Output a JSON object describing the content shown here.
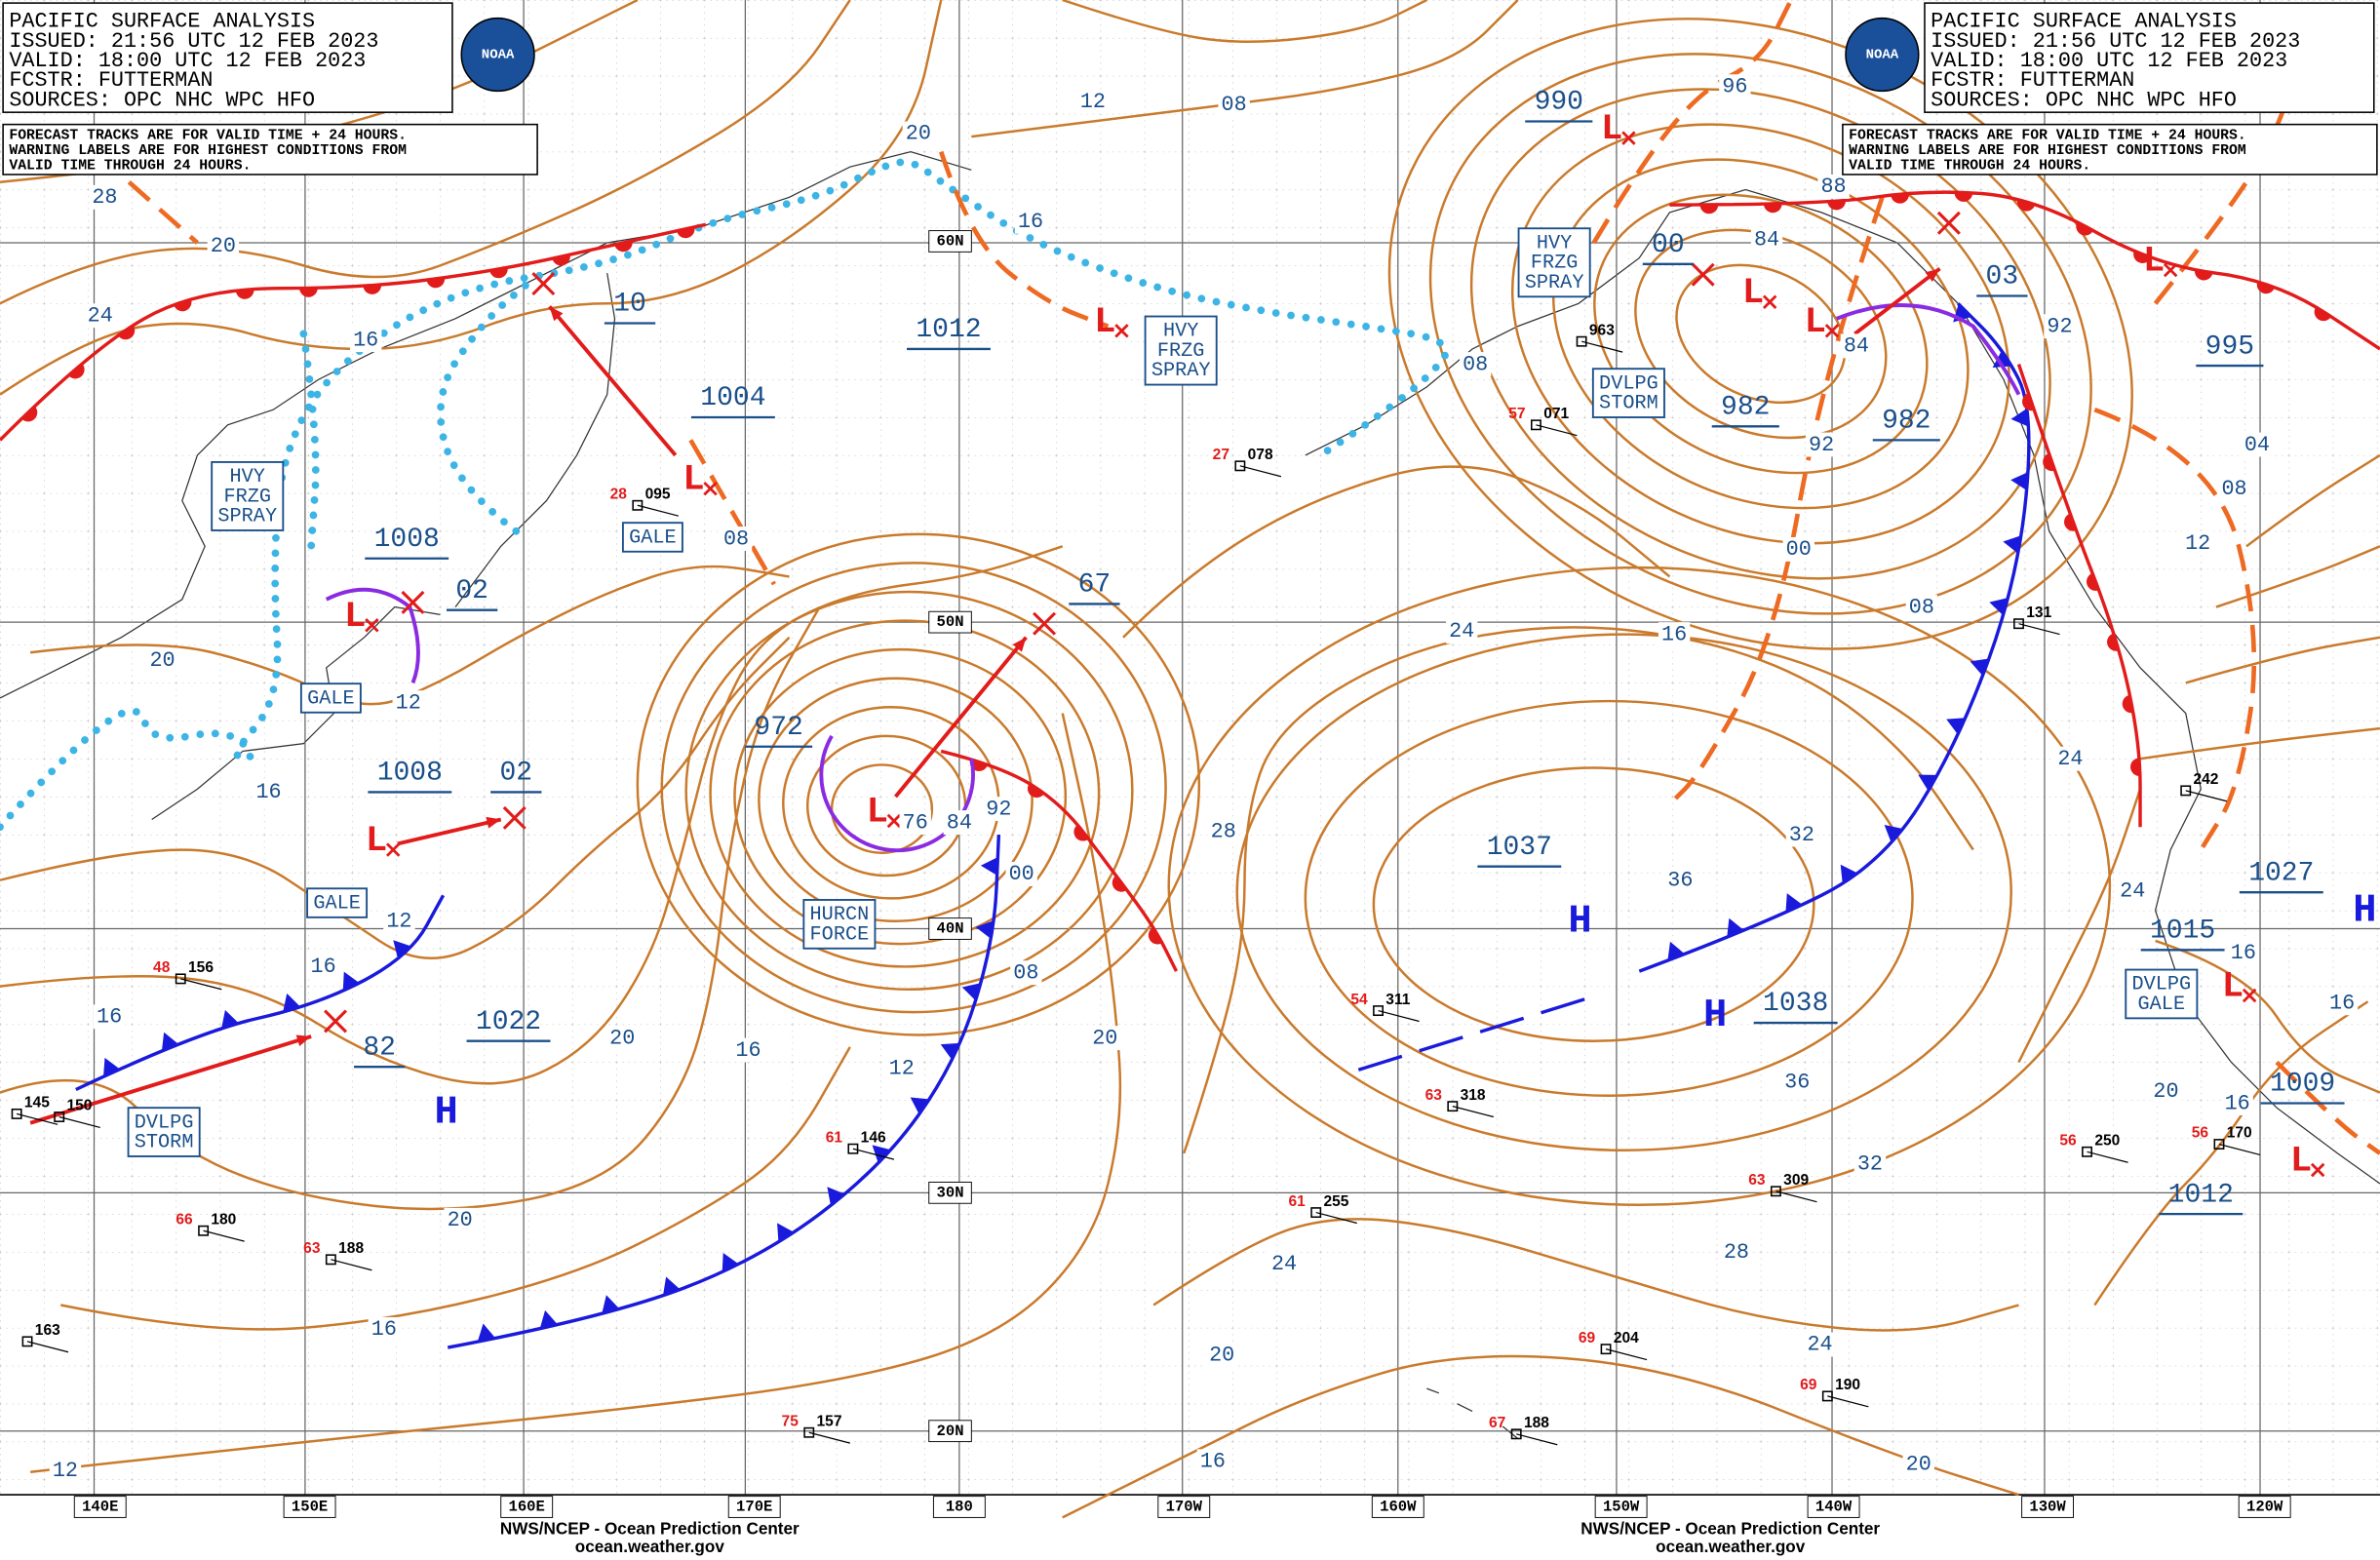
{
  "header": {
    "title": "PACIFIC SURFACE ANALYSIS",
    "issued": "ISSUED: 21:56 UTC 12 FEB 2023",
    "valid": "VALID:  18:00 UTC 12 FEB 2023",
    "forecaster": "FCSTR:  FUTTERMAN",
    "sources": "SOURCES: OPC NHC WPC HFO",
    "logo": "NOAA",
    "note": [
      "FORECAST TRACKS ARE FOR VALID TIME + 24 HOURS.",
      "WARNING LABELS ARE FOR HIGHEST CONDITIONS FROM",
      "VALID TIME THROUGH 24 HOURS."
    ]
  },
  "pressure_centers": [
    "990",
    "1012",
    "1004",
    "1008",
    "02",
    "1008",
    "02",
    "972",
    "67",
    "1022",
    "82",
    "00",
    "03",
    "982",
    "982",
    "995",
    "1037",
    "1038",
    "1027",
    "1015",
    "1009",
    "1012",
    "10"
  ],
  "isobar_labels": [
    "12",
    "08",
    "96",
    "20",
    "16",
    "28",
    "20",
    "24",
    "16",
    "08",
    "20",
    "12",
    "16",
    "12",
    "16",
    "16",
    "20",
    "16",
    "12",
    "08",
    "00",
    "92",
    "84",
    "76",
    "28",
    "20",
    "24",
    "16",
    "32",
    "36",
    "36",
    "32",
    "28",
    "24",
    "20",
    "16",
    "20",
    "24",
    "20",
    "16",
    "12",
    "08",
    "84",
    "84",
    "92",
    "92",
    "00",
    "08",
    "04",
    "08",
    "12",
    "24",
    "24",
    "16",
    "16",
    "20",
    "16",
    "88"
  ],
  "warnings": [
    [
      "HVY",
      "FRZG",
      "SPRAY"
    ],
    [
      "GALE"
    ],
    [
      "GALE"
    ],
    [
      "GALE"
    ],
    [
      "DVLPG",
      "STORM"
    ],
    [
      "HURCN",
      "FORCE"
    ],
    [
      "HVY",
      "FRZG",
      "SPRAY"
    ],
    [
      "HVY",
      "FRZG",
      "SPRAY"
    ],
    [
      "DVLPG",
      "STORM"
    ],
    [
      "DVLPG",
      "GALE"
    ]
  ],
  "high_symbol": "H",
  "low_symbol": "L",
  "latitude_labels": [
    "60N",
    "50N",
    "40N",
    "30N",
    "20N"
  ],
  "longitude_labels": [
    "140E",
    "150E",
    "160E",
    "170E",
    "180",
    "170W",
    "160W",
    "150W",
    "140W",
    "130W",
    "120W"
  ],
  "stations": [
    {
      "pressure": "095",
      "temp": "28"
    },
    {
      "pressure": "156",
      "temp": "48"
    },
    {
      "pressure": "146",
      "temp": "61"
    },
    {
      "pressure": "078",
      "temp": "27"
    },
    {
      "pressure": "071",
      "temp": "57"
    },
    {
      "pressure": "963"
    },
    {
      "pressure": "131"
    },
    {
      "pressure": "242"
    },
    {
      "pressure": "311",
      "temp": "54"
    },
    {
      "pressure": "318",
      "temp": "63"
    },
    {
      "pressure": "309",
      "temp": "63"
    },
    {
      "pressure": "255",
      "temp": "61"
    },
    {
      "pressure": "250",
      "temp": "56"
    },
    {
      "pressure": "170",
      "temp": "56"
    },
    {
      "pressure": "204",
      "temp": "69"
    },
    {
      "pressure": "190",
      "temp": "69"
    },
    {
      "pressure": "188",
      "temp": "67"
    },
    {
      "pressure": "180",
      "temp": "66"
    },
    {
      "pressure": "188",
      "temp": "63"
    },
    {
      "pressure": "163"
    },
    {
      "pressure": "157",
      "temp": "75"
    },
    {
      "pressure": "145"
    },
    {
      "pressure": "150"
    }
  ],
  "footer": {
    "agency": "NWS/NCEP - Ocean Prediction Center",
    "url": "ocean.weather.gov"
  }
}
